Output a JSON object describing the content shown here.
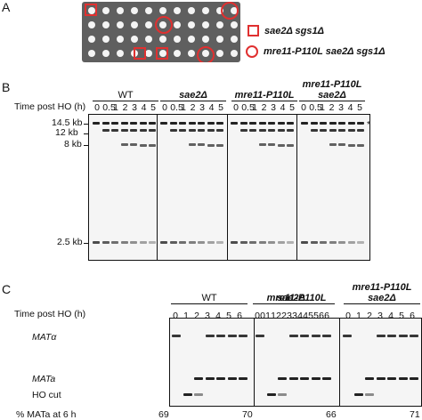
{
  "panels": {
    "a": "A",
    "b": "B",
    "c": "C"
  },
  "legend": {
    "square": "sae2Δ sgs1Δ",
    "circle": "mre11-P110L sae2Δ sgs1Δ"
  },
  "panel_b": {
    "time_label": "Time post HO (h)",
    "groups": [
      {
        "name": "WT"
      },
      {
        "name": "sae2Δ"
      },
      {
        "name": "mre11-P110L"
      },
      {
        "name": "mre11-P110L\nsae2Δ"
      }
    ],
    "lanes": [
      "0",
      "0.5",
      "1",
      "2",
      "3",
      "4",
      "5"
    ],
    "sizes": [
      "14.5 kb",
      "12 kb",
      "8 kb",
      "2.5 kb"
    ],
    "star": "*"
  },
  "panel_c": {
    "time_label": "Time post HO (h)",
    "groups": [
      {
        "name": "WT"
      },
      {
        "name": "sae2Δ"
      },
      {
        "name": "mre11-P110L"
      },
      {
        "name": "mre11-P110L\nsae2Δ"
      }
    ],
    "lanes": [
      "0",
      "1",
      "2",
      "3",
      "4",
      "5",
      "6"
    ],
    "row_labels": {
      "mat_alpha": "MATα",
      "mat_a": "MATa",
      "ho_cut": "HO cut"
    },
    "pct_label": "% MATa at 6 h",
    "pct_values": [
      "69",
      "70",
      "66",
      "71"
    ]
  }
}
